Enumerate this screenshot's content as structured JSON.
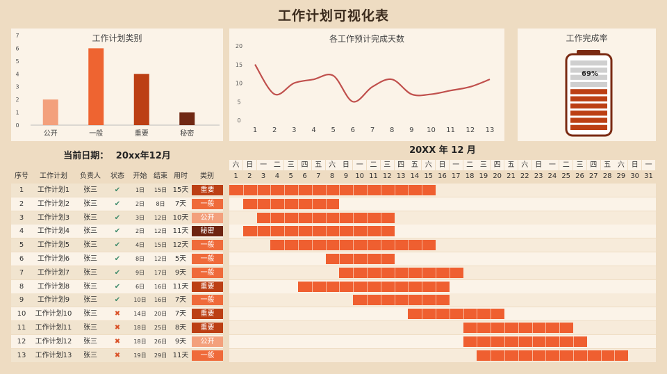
{
  "title": "工作计划可视化表",
  "chart_data": [
    {
      "type": "bar",
      "title": "工作计划类别",
      "categories": [
        "公开",
        "一般",
        "重要",
        "秘密"
      ],
      "values": [
        2,
        6,
        4,
        1
      ],
      "ylim": [
        0,
        7
      ],
      "yticks": [
        0,
        1,
        2,
        3,
        4,
        5,
        6,
        7
      ],
      "colors": [
        "#f3a07c",
        "#ee6431",
        "#bc3f14",
        "#702813"
      ]
    },
    {
      "type": "line",
      "title": "各工作预计完成天数",
      "x": [
        1,
        2,
        3,
        4,
        5,
        6,
        7,
        8,
        9,
        10,
        11,
        12,
        13
      ],
      "values": [
        15,
        7,
        10,
        11,
        12,
        5,
        9,
        11,
        7,
        7,
        8,
        9,
        11
      ],
      "ylim": [
        0,
        20
      ],
      "yticks": [
        0,
        5,
        10,
        15,
        20
      ],
      "color": "#c0504d"
    },
    {
      "type": "gauge",
      "title": "工作完成率",
      "value": 0.69,
      "label": "69%",
      "segments": 10,
      "fill_color": "#bc3f14",
      "empty_color": "#cfcfcf"
    }
  ],
  "current_date": {
    "label": "当前日期：",
    "value": "20xx年12月"
  },
  "table": {
    "headers": [
      "序号",
      "工作计划",
      "负责人",
      "状态",
      "开始",
      "结束",
      "用时",
      "类别"
    ],
    "rows": [
      {
        "no": "1",
        "name": "工作计划1",
        "owner": "张三",
        "status": "✔",
        "start": "1日",
        "end": "15日",
        "days": "15天",
        "cat": "重要"
      },
      {
        "no": "2",
        "name": "工作计划2",
        "owner": "张三",
        "status": "✔",
        "start": "2日",
        "end": "8日",
        "days": "7天",
        "cat": "一般"
      },
      {
        "no": "3",
        "name": "工作计划3",
        "owner": "张三",
        "status": "✔",
        "start": "3日",
        "end": "12日",
        "days": "10天",
        "cat": "公开"
      },
      {
        "no": "4",
        "name": "工作计划4",
        "owner": "张三",
        "status": "✔",
        "start": "2日",
        "end": "12日",
        "days": "11天",
        "cat": "秘密"
      },
      {
        "no": "5",
        "name": "工作计划5",
        "owner": "张三",
        "status": "✔",
        "start": "4日",
        "end": "15日",
        "days": "12天",
        "cat": "一般"
      },
      {
        "no": "6",
        "name": "工作计划6",
        "owner": "张三",
        "status": "✔",
        "start": "8日",
        "end": "12日",
        "days": "5天",
        "cat": "一般"
      },
      {
        "no": "7",
        "name": "工作计划7",
        "owner": "张三",
        "status": "✔",
        "start": "9日",
        "end": "17日",
        "days": "9天",
        "cat": "一般"
      },
      {
        "no": "8",
        "name": "工作计划8",
        "owner": "张三",
        "status": "✔",
        "start": "6日",
        "end": "16日",
        "days": "11天",
        "cat": "重要"
      },
      {
        "no": "9",
        "name": "工作计划9",
        "owner": "张三",
        "status": "✔",
        "start": "10日",
        "end": "16日",
        "days": "7天",
        "cat": "一般"
      },
      {
        "no": "10",
        "name": "工作计划10",
        "owner": "张三",
        "status": "✖",
        "start": "14日",
        "end": "20日",
        "days": "7天",
        "cat": "重要"
      },
      {
        "no": "11",
        "name": "工作计划11",
        "owner": "张三",
        "status": "✖",
        "start": "18日",
        "end": "25日",
        "days": "8天",
        "cat": "重要"
      },
      {
        "no": "12",
        "name": "工作计划12",
        "owner": "张三",
        "status": "✖",
        "start": "18日",
        "end": "26日",
        "days": "9天",
        "cat": "公开"
      },
      {
        "no": "13",
        "name": "工作计划13",
        "owner": "张三",
        "status": "✖",
        "start": "19日",
        "end": "29日",
        "days": "11天",
        "cat": "一般"
      }
    ]
  },
  "category_colors": {
    "重要": "#bc3f14",
    "一般": "#ef6a3a",
    "公开": "#f3a07c",
    "秘密": "#6e2410"
  },
  "status_colors": {
    "✔": "#3d8a6a",
    "✖": "#d9532a"
  },
  "gantt": {
    "title": "20XX 年 12 月",
    "weekdays": [
      "六",
      "日",
      "一",
      "二",
      "三",
      "四",
      "五",
      "六",
      "日",
      "一",
      "二",
      "三",
      "四",
      "五",
      "六",
      "日",
      "一",
      "二",
      "三",
      "四",
      "五",
      "六",
      "日",
      "一",
      "二",
      "三",
      "四",
      "五",
      "六",
      "日",
      "一"
    ],
    "days": [
      "1",
      "2",
      "3",
      "4",
      "5",
      "6",
      "7",
      "8",
      "9",
      "10",
      "11",
      "12",
      "13",
      "14",
      "15",
      "16",
      "17",
      "18",
      "19",
      "20",
      "21",
      "22",
      "23",
      "24",
      "25",
      "26",
      "27",
      "28",
      "29",
      "30",
      "31"
    ],
    "tasks": [
      [
        1,
        15
      ],
      [
        2,
        8
      ],
      [
        3,
        12
      ],
      [
        2,
        12
      ],
      [
        4,
        15
      ],
      [
        8,
        12
      ],
      [
        9,
        17
      ],
      [
        6,
        16
      ],
      [
        10,
        16
      ],
      [
        14,
        20
      ],
      [
        18,
        25
      ],
      [
        18,
        26
      ],
      [
        19,
        29
      ]
    ],
    "bar_color": "#ef5f30"
  }
}
